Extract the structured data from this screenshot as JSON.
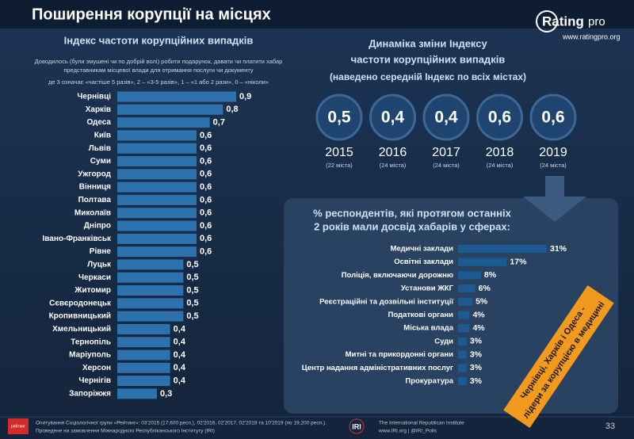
{
  "header": {
    "title": "Поширення корупції на місцях"
  },
  "logo": {
    "brand": "Rating",
    "suffix": "pro",
    "url": "www.ratingpro.org"
  },
  "chart_data": [
    {
      "type": "bar",
      "orientation": "horizontal",
      "title": "Індекс частоти корупційних випадків",
      "subtitle": "Доводилось (були змушені чи по добрій волі) робити подарунок, давати чи платити хабар",
      "subtitle2": "представникам місцевої влади для отримання послуги чи документу",
      "note": "де 3 означає «частіше 5 разів», 2 – «3-5 разів», 1 – «1 або 2 рази», 0 – «ніколи»",
      "categories": [
        "Чернівці",
        "Харків",
        "Одеса",
        "Київ",
        "Львів",
        "Суми",
        "Ужгород",
        "Вінниця",
        "Полтава",
        "Миколаїв",
        "Дніпро",
        "Івано-Франківськ",
        "Рівне",
        "Луцьк",
        "Черкаси",
        "Житомир",
        "Сєвєродонецьк",
        "Кропивницький",
        "Хмельницький",
        "Тернопіль",
        "Маріуполь",
        "Херсон",
        "Чернігів",
        "Запоріжжя"
      ],
      "values": [
        0.9,
        0.8,
        0.7,
        0.6,
        0.6,
        0.6,
        0.6,
        0.6,
        0.6,
        0.6,
        0.6,
        0.6,
        0.6,
        0.5,
        0.5,
        0.5,
        0.5,
        0.5,
        0.4,
        0.4,
        0.4,
        0.4,
        0.4,
        0.3
      ],
      "value_labels": [
        "0,9",
        "0,8",
        "0,7",
        "0,6",
        "0,6",
        "0,6",
        "0,6",
        "0,6",
        "0,6",
        "0,6",
        "0,6",
        "0,6",
        "0,6",
        "0,5",
        "0,5",
        "0,5",
        "0,5",
        "0,5",
        "0,4",
        "0,4",
        "0,4",
        "0,4",
        "0,4",
        "0,3"
      ],
      "color": "#2d72ad"
    },
    {
      "type": "circle",
      "title": "Динаміка зміни Індексу",
      "title2": "частоти корупційних випадків",
      "subtitle": "(наведено середній Індекс по всіх містах)",
      "categories": [
        "2015",
        "2016",
        "2017",
        "2018",
        "2019"
      ],
      "notes": [
        "(22 міста)",
        "(24 міста)",
        "(24 міста)",
        "(24 міста)",
        "(24 міста)"
      ],
      "values": [
        0.5,
        0.4,
        0.4,
        0.6,
        0.6
      ],
      "value_labels": [
        "0,5",
        "0,4",
        "0,4",
        "0,6",
        "0,6"
      ],
      "color": "#1f4470"
    },
    {
      "type": "bar",
      "orientation": "horizontal",
      "title": "% респондентів, які протягом останніх",
      "title2": "2 років мали досвід хабарів у сферах:",
      "categories": [
        "Медичні заклади",
        "Освітні заклади",
        "Поліція, включаючи дорожню",
        "Установи ЖКГ",
        "Реєстраційні та дозвільні інституції",
        "Податкові органи",
        "Міська влада",
        "Суди",
        "Митні та прикордонні органи",
        "Центр надання адміністративних послуг",
        "Прокуратура"
      ],
      "values": [
        31,
        17,
        8,
        6,
        5,
        4,
        4,
        3,
        3,
        3,
        3
      ],
      "value_labels": [
        "31%",
        "17%",
        "8%",
        "6%",
        "5%",
        "4%",
        "4%",
        "3%",
        "3%",
        "3%",
        "3%"
      ],
      "color": "#1d5a92",
      "annotation": [
        "Чернівці, Харків і Одеса -",
        "лідери за корупцією в медицині"
      ]
    }
  ],
  "footer": {
    "survey": "Опитування Соціологічної групи «Рейтинг»: 03'2015 (17,600 респ.), 02'2016, 02'2017, 02'2018 та 10'2019 (по 19,200 респ.).",
    "commission": "Проведене на замовлення Міжнародного Республіканського Інституту (IRI)",
    "org_logo": "IRI",
    "org_name": "The International Republican Institute",
    "org_links": "www.IRI.org | @IRI_Polls",
    "page": "33",
    "brand": "рейтинг"
  }
}
